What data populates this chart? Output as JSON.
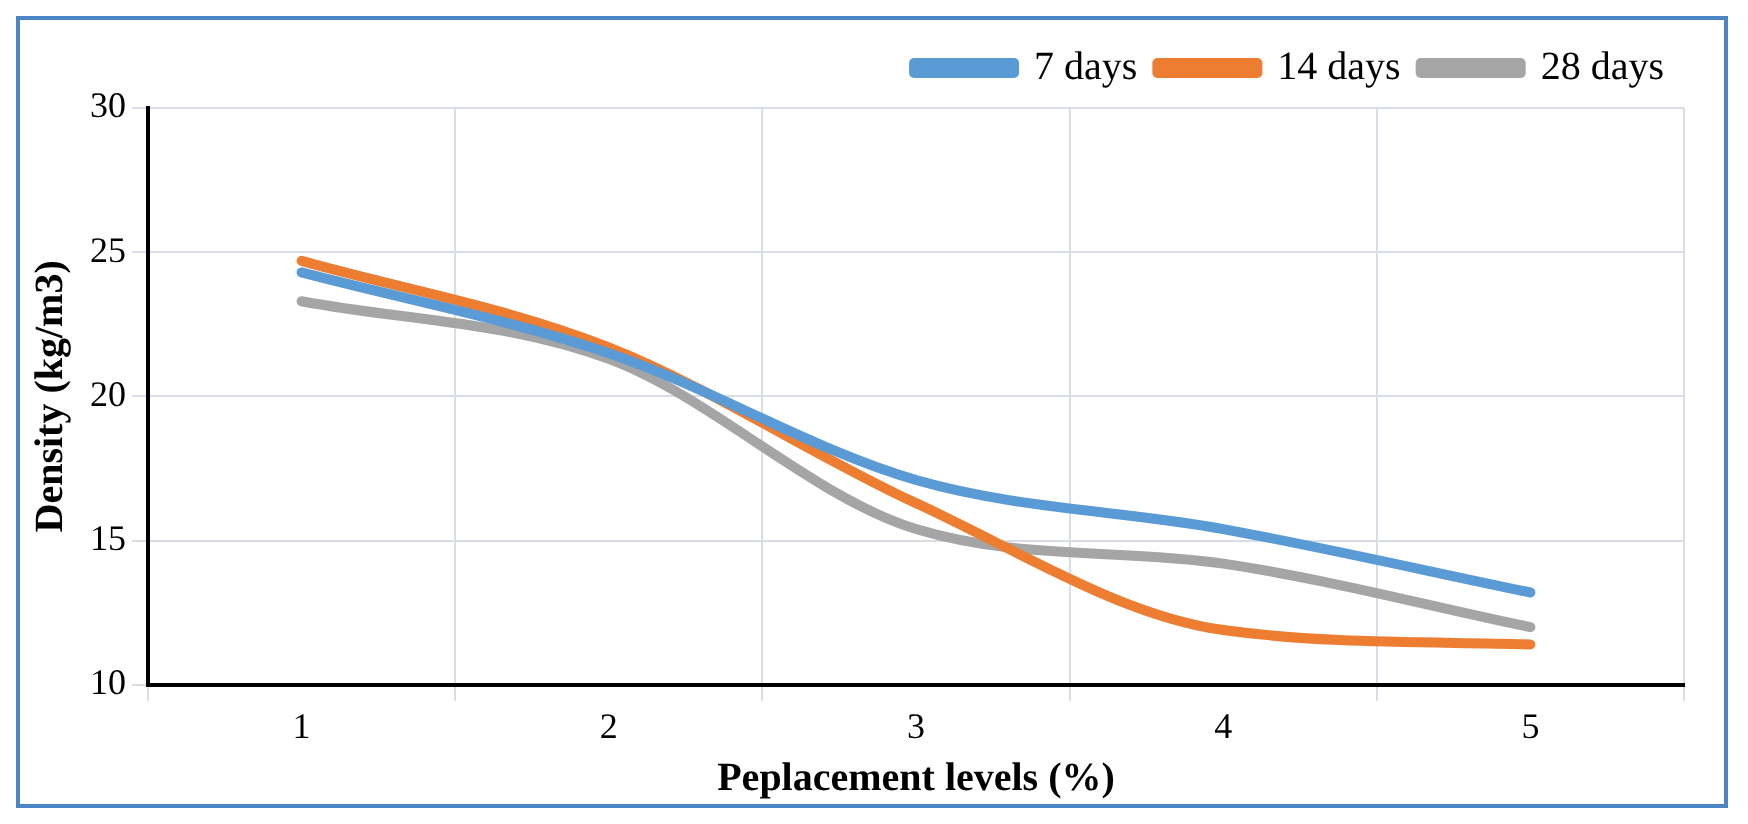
{
  "chart_data": {
    "type": "line",
    "xlabel": "Peplacement levels (%)",
    "ylabel": "Density (kg/m3)",
    "categories": [
      "1",
      "2",
      "3",
      "4",
      "5"
    ],
    "series": [
      {
        "name": "7 days",
        "color": "#5b9bd5",
        "values": [
          24.3,
          21.5,
          17.1,
          15.4,
          13.2
        ]
      },
      {
        "name": "14 days",
        "color": "#ed7d31",
        "values": [
          24.7,
          21.7,
          16.3,
          11.9,
          11.4
        ]
      },
      {
        "name": "28 days",
        "color": "#a5a5a5",
        "values": [
          23.3,
          21.3,
          15.4,
          14.2,
          12.0
        ]
      }
    ],
    "ylim": [
      10,
      30
    ],
    "yticks": [
      10,
      15,
      20,
      25,
      30
    ],
    "grid": true,
    "legend": "top right",
    "marker": "none",
    "line_style": "solid"
  }
}
